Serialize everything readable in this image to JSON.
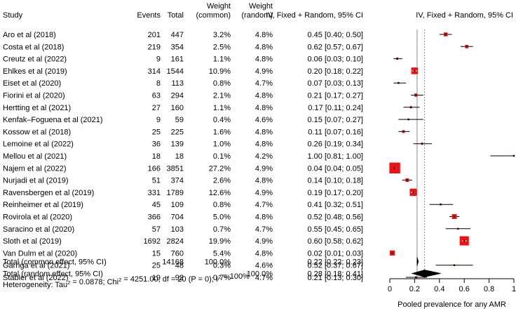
{
  "chart_data": {
    "type": "forest",
    "columns": {
      "study": "Study",
      "events": "Events",
      "total": "Total",
      "weight_common": [
        "Weight",
        "(common)"
      ],
      "weight_random": [
        "Weight",
        "(random)"
      ],
      "ci": "IV, Fixed + Random, 95% CI",
      "plot": "IV, Fixed + Random, 95% CI"
    },
    "studies": [
      {
        "name": "Aro et al (2018)",
        "events": "201",
        "total": "447",
        "w_common": "3.2%",
        "w_random": "4.8%",
        "est": 0.45,
        "lo": 0.4,
        "hi": 0.5,
        "ci_text": "0.45 [0.40; 0.50]"
      },
      {
        "name": "Costa et al (2018)",
        "events": "219",
        "total": "354",
        "w_common": "2.5%",
        "w_random": "4.8%",
        "est": 0.62,
        "lo": 0.57,
        "hi": 0.67,
        "ci_text": "0.62 [0.57; 0.67]"
      },
      {
        "name": "Creutz et al (2022)",
        "events": "9",
        "total": "161",
        "w_common": "1.1%",
        "w_random": "4.8%",
        "est": 0.06,
        "lo": 0.03,
        "hi": 0.1,
        "ci_text": "0.06 [0.03; 0.10]"
      },
      {
        "name": "Ehlkes et al (2019)",
        "events": "314",
        "total": "1544",
        "w_common": "10.9%",
        "w_random": "4.9%",
        "est": 0.2,
        "lo": 0.18,
        "hi": 0.22,
        "ci_text": "0.20 [0.18; 0.22]"
      },
      {
        "name": "Eiset et al (2020)",
        "events": "8",
        "total": "113",
        "w_common": "0.8%",
        "w_random": "4.7%",
        "est": 0.07,
        "lo": 0.03,
        "hi": 0.13,
        "ci_text": "0.07 [0.03; 0.13]"
      },
      {
        "name": "Fiorini et al (2020)",
        "events": "63",
        "total": "294",
        "w_common": "2.1%",
        "w_random": "4.8%",
        "est": 0.21,
        "lo": 0.17,
        "hi": 0.27,
        "ci_text": "0.21 [0.17; 0.27]"
      },
      {
        "name": "Hertting et al (2021)",
        "events": "27",
        "total": "160",
        "w_common": "1.1%",
        "w_random": "4.8%",
        "est": 0.17,
        "lo": 0.11,
        "hi": 0.24,
        "ci_text": "0.17 [0.11; 0.24]"
      },
      {
        "name": "Kenfak–Foguena et al (2021)",
        "events": "9",
        "total": "59",
        "w_common": "0.4%",
        "w_random": "4.6%",
        "est": 0.15,
        "lo": 0.07,
        "hi": 0.27,
        "ci_text": "0.15 [0.07; 0.27]"
      },
      {
        "name": "Kossow et al (2018)",
        "events": "25",
        "total": "225",
        "w_common": "1.6%",
        "w_random": "4.8%",
        "est": 0.11,
        "lo": 0.07,
        "hi": 0.16,
        "ci_text": "0.11 [0.07; 0.16]"
      },
      {
        "name": "Lemoine et al (2022)",
        "events": "36",
        "total": "139",
        "w_common": "1.0%",
        "w_random": "4.8%",
        "est": 0.26,
        "lo": 0.19,
        "hi": 0.34,
        "ci_text": "0.26 [0.19; 0.34]"
      },
      {
        "name": "Mellou et al (2021)",
        "events": "18",
        "total": "18",
        "w_common": "0.1%",
        "w_random": "4.2%",
        "est": 1.0,
        "lo": 0.81,
        "hi": 1.0,
        "ci_text": "1.00 [0.81; 1.00]"
      },
      {
        "name": "Najem et al (2022)",
        "events": "166",
        "total": "3851",
        "w_common": "27.2%",
        "w_random": "4.9%",
        "est": 0.04,
        "lo": 0.04,
        "hi": 0.05,
        "ci_text": "0.04 [0.04; 0.05]"
      },
      {
        "name": "Nurjadi et al (2019)",
        "events": "51",
        "total": "374",
        "w_common": "2.6%",
        "w_random": "4.8%",
        "est": 0.14,
        "lo": 0.1,
        "hi": 0.18,
        "ci_text": "0.14 [0.10; 0.18]"
      },
      {
        "name": "Ravensbergen et al (2019)",
        "events": "331",
        "total": "1789",
        "w_common": "12.6%",
        "w_random": "4.9%",
        "est": 0.19,
        "lo": 0.17,
        "hi": 0.2,
        "ci_text": "0.19 [0.17; 0.20]"
      },
      {
        "name": "Reinheimer et al (2019)",
        "events": "45",
        "total": "109",
        "w_common": "0.8%",
        "w_random": "4.7%",
        "est": 0.41,
        "lo": 0.32,
        "hi": 0.51,
        "ci_text": "0.41 [0.32; 0.51]"
      },
      {
        "name": "Rovirola et al (2020)",
        "events": "366",
        "total": "704",
        "w_common": "5.0%",
        "w_random": "4.8%",
        "est": 0.52,
        "lo": 0.48,
        "hi": 0.56,
        "ci_text": "0.52 [0.48; 0.56]"
      },
      {
        "name": "Saracino et al (2020)",
        "events": "57",
        "total": "103",
        "w_common": "0.7%",
        "w_random": "4.7%",
        "est": 0.55,
        "lo": 0.45,
        "hi": 0.65,
        "ci_text": "0.55 [0.45; 0.65]"
      },
      {
        "name": "Sloth et al (2019)",
        "events": "1692",
        "total": "2824",
        "w_common": "19.9%",
        "w_random": "4.9%",
        "est": 0.6,
        "lo": 0.58,
        "hi": 0.62,
        "ci_text": "0.60 [0.58; 0.62]"
      },
      {
        "name": "Van Dulm et al (2020)",
        "events": "15",
        "total": "760",
        "w_common": "5.4%",
        "w_random": "4.8%",
        "est": 0.02,
        "lo": 0.01,
        "hi": 0.03,
        "ci_text": "0.02 [0.01; 0.03]"
      },
      {
        "name": "Garriga et al (2021)",
        "events": "25",
        "total": "48",
        "w_common": "0.3%",
        "w_random": "4.6%",
        "est": 0.52,
        "lo": 0.37,
        "hi": 0.67,
        "ci_text": "0.52 [0.37; 0.67]"
      },
      {
        "name": "Stabler et al (2022)",
        "events": "19",
        "total": "92",
        "w_common": "0.7%",
        "w_random": "4.7%",
        "est": 0.21,
        "lo": 0.13,
        "hi": 0.3,
        "ci_text": "0.21 [0.13; 0.30]"
      }
    ],
    "pooled": [
      {
        "name": "Total (common effect, 95% CI)",
        "events": "",
        "total": "14168",
        "w_common": "100.0%",
        "w_random": ".",
        "est": 0.22,
        "lo": 0.22,
        "hi": 0.23,
        "ci_text": "0.22 [0.22; 0.23]"
      },
      {
        "name": "Total (random effect, 95% CI)",
        "events": "",
        "total": ".",
        "w_common": "",
        "w_random": "100.0%",
        "est": 0.28,
        "lo": 0.18,
        "hi": 0.41,
        "ci_text": "0.28 [0.18; 0.41]"
      }
    ],
    "heterogeneity": "Heterogeneity: Tau² = 0.0878; Chi² = 4251.00, df = 20 (P = 0); I² = 100%",
    "xlim": [
      0,
      1
    ],
    "xticks": [
      0,
      0.2,
      0.4,
      0.6,
      0.8,
      1
    ],
    "xtick_labels": [
      "0",
      "0.2",
      "0.4",
      "0.6",
      "0.8",
      "1"
    ],
    "xlabel": "Pooled prevalence for any AMR",
    "colors": {
      "box": "#ee1111",
      "box_edge": "#ffffff",
      "point": "#000000",
      "line": "#000000",
      "diamond": "#000000",
      "ref_line": "#888888"
    }
  }
}
